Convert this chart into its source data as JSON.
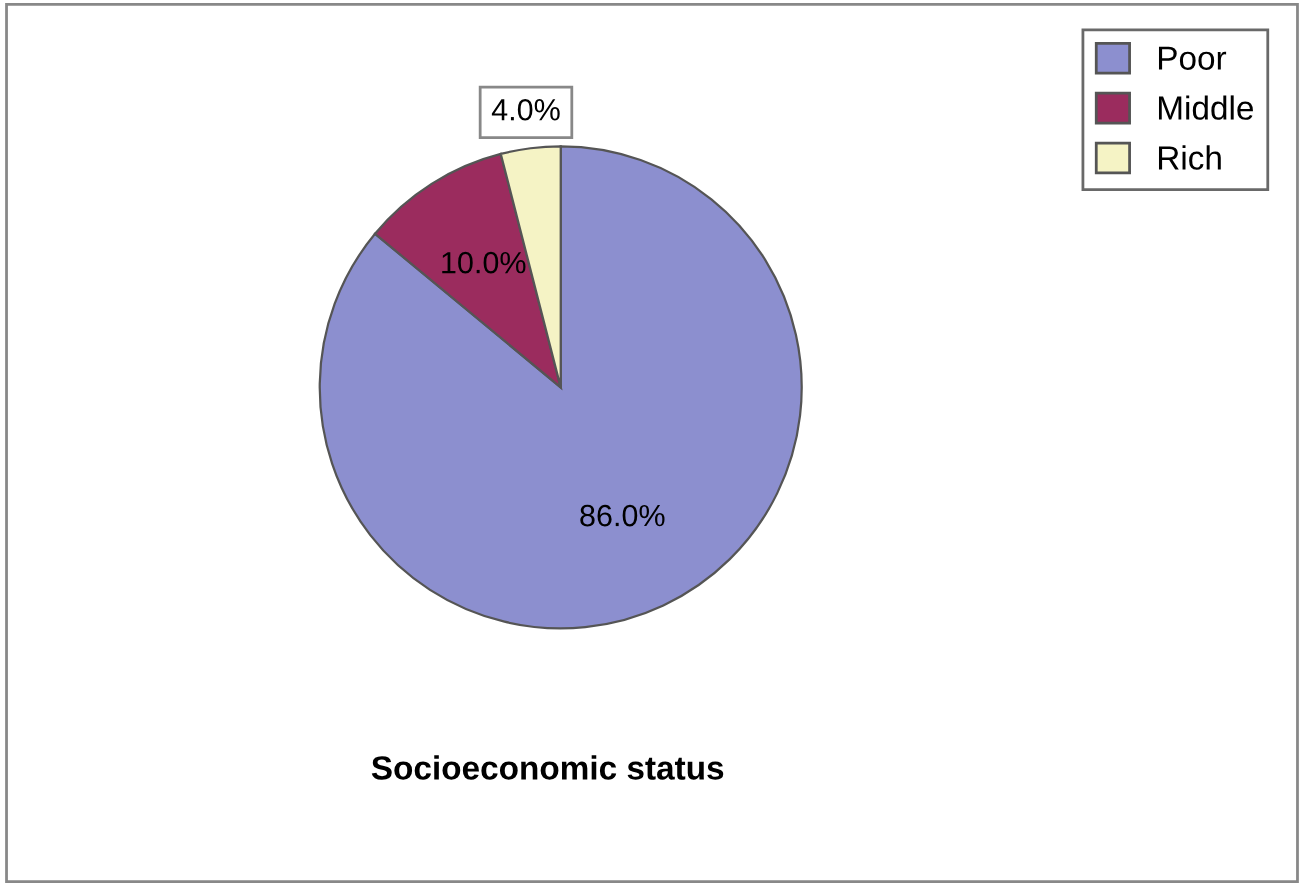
{
  "chart_data": {
    "type": "pie",
    "title": "Socioeconomic status",
    "categories": [
      "Poor",
      "Middle",
      "Rich"
    ],
    "values": [
      86,
      10,
      4
    ],
    "value_labels": [
      "86.0%",
      "10.0%",
      "4.0%"
    ],
    "colors": [
      "#8c8fcf",
      "#9b2c5e",
      "#f5f3c5"
    ],
    "legend": "top right"
  }
}
